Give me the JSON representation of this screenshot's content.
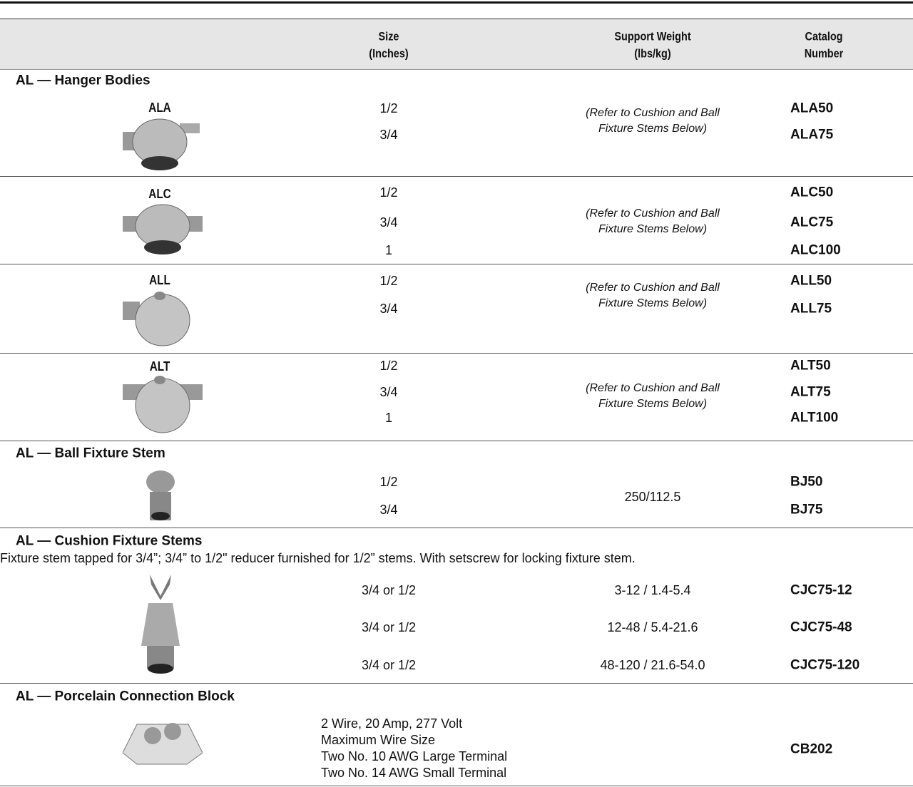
{
  "header": {
    "size": [
      "Size",
      "(Inches)"
    ],
    "support_weight": [
      "Support Weight",
      "(lbs/kg)"
    ],
    "catalog_number": [
      "Catalog",
      "Number"
    ]
  },
  "sections": [
    {
      "title": "AL — Hanger Bodies",
      "groups": [
        {
          "label": "ALA",
          "sizes": [
            "1/2",
            "3/4"
          ],
          "support_weight": [
            "(Refer to Cushion and Ball",
            "Fixture Stems Below)"
          ],
          "catalog_numbers": [
            "ALA50",
            "ALA75"
          ]
        },
        {
          "label": "ALC",
          "sizes": [
            "1/2",
            "3/4",
            "1"
          ],
          "support_weight": [
            "(Refer to Cushion and Ball",
            "Fixture Stems Below)"
          ],
          "catalog_numbers": [
            "ALC50",
            "ALC75",
            "ALC100"
          ]
        },
        {
          "label": "ALL",
          "sizes": [
            "1/2",
            "3/4"
          ],
          "support_weight": [
            "(Refer to Cushion and Ball",
            "Fixture Stems Below)"
          ],
          "catalog_numbers": [
            "ALL50",
            "ALL75"
          ]
        },
        {
          "label": "ALT",
          "sizes": [
            "1/2",
            "3/4",
            "1"
          ],
          "support_weight": [
            "(Refer to Cushion and Ball",
            "Fixture Stems Below)"
          ],
          "catalog_numbers": [
            "ALT50",
            "ALT75",
            "ALT100"
          ]
        }
      ]
    },
    {
      "title": "AL — Ball Fixture Stem",
      "groups": [
        {
          "sizes": [
            "1/2",
            "3/4"
          ],
          "support_weight": [
            "250/112.5"
          ],
          "catalog_numbers": [
            "BJ50",
            "BJ75"
          ]
        }
      ]
    },
    {
      "title": "AL — Cushion Fixture Stems",
      "description": "Fixture stem tapped for 3/4”; 3/4” to 1/2\" reducer furnished for 1/2” stems. With setscrew for locking fixture stem.",
      "rows": [
        {
          "size": "3/4 or 1/2",
          "support_weight": "3-12 / 1.4-5.4",
          "catalog_number": "CJC75-12"
        },
        {
          "size": "3/4 or 1/2",
          "support_weight": "12-48 / 5.4-21.6",
          "catalog_number": "CJC75-48"
        },
        {
          "size": "3/4 or 1/2",
          "support_weight": "48-120 / 21.6-54.0",
          "catalog_number": "CJC75-120"
        }
      ]
    },
    {
      "title": "AL — Porcelain Connection Block",
      "description": [
        "2 Wire, 20 Amp, 277 Volt",
        "Maximum Wire Size",
        "Two No. 10 AWG Large Terminal",
        "Two No. 14 AWG Small Terminal"
      ],
      "catalog_number": "CB202"
    }
  ]
}
